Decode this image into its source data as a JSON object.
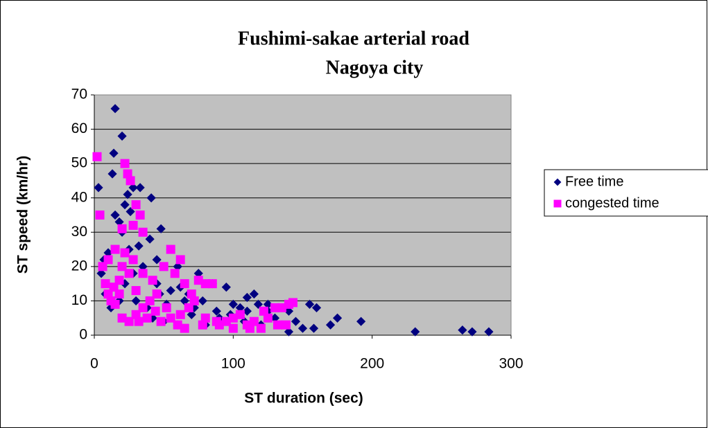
{
  "chart_data": {
    "type": "scatter",
    "title": "Fushimi-sakae arterial road",
    "subtitle": "Nagoya city",
    "x_label": "ST duration (sec)",
    "y_label": "ST speed (km/hr)",
    "xlim": [
      0,
      300
    ],
    "xticks": [
      0,
      100,
      200,
      300
    ],
    "ylim": [
      0,
      70
    ],
    "yticks": [
      0,
      10,
      20,
      30,
      40,
      50,
      60,
      70
    ],
    "grid": true,
    "legend": "right",
    "series": [
      {
        "name": "Free time",
        "color": "#000080",
        "marker": "diamond",
        "x": [
          15,
          20,
          14,
          3,
          13,
          28,
          33,
          41,
          48,
          55,
          60,
          75,
          85,
          95,
          115,
          125,
          140,
          155,
          160,
          175,
          170,
          192,
          231,
          265,
          272,
          284,
          158,
          145,
          140,
          100,
          105,
          110,
          90,
          80,
          70,
          65,
          55,
          45,
          35,
          25,
          20,
          15,
          10,
          5,
          8,
          12,
          18,
          22,
          28,
          30,
          38,
          42,
          50,
          60,
          52,
          47,
          32,
          26,
          22,
          24,
          18,
          7,
          40,
          45,
          62,
          68,
          72,
          78,
          88,
          98,
          108,
          120,
          130,
          135,
          150,
          118,
          110,
          125
        ],
        "values": [
          66,
          58,
          53,
          43,
          47,
          43,
          43,
          40,
          31,
          25,
          20,
          18,
          15,
          14,
          12,
          9,
          7,
          9,
          8,
          5,
          3,
          4,
          1,
          1.5,
          1,
          1,
          2,
          4,
          1,
          9,
          8,
          7,
          5,
          3,
          6,
          10,
          13,
          15,
          20,
          25,
          30,
          35,
          24,
          18,
          12,
          8,
          10,
          15,
          18,
          10,
          8,
          5,
          4,
          3,
          9,
          12,
          26,
          36,
          38,
          41,
          33,
          22,
          28,
          22,
          14,
          12,
          8,
          10,
          7,
          6,
          4,
          3,
          5,
          3,
          2,
          9,
          11,
          7
        ]
      },
      {
        "name": "congested time",
        "color": "#ff00ff",
        "marker": "square",
        "x": [
          2,
          4,
          22,
          24,
          26,
          30,
          33,
          35,
          28,
          20,
          15,
          10,
          6,
          8,
          10,
          12,
          15,
          20,
          25,
          30,
          35,
          40,
          45,
          50,
          55,
          62,
          58,
          65,
          70,
          75,
          80,
          85,
          72,
          68,
          62,
          55,
          48,
          38,
          30,
          25,
          20,
          18,
          22,
          28,
          35,
          42,
          60,
          65,
          80,
          90,
          95,
          100,
          105,
          110,
          115,
          120,
          125,
          130,
          135,
          140,
          143,
          138,
          132,
          122,
          112,
          100,
          88,
          78,
          52,
          44,
          32,
          14,
          18
        ],
        "values": [
          52,
          35,
          50,
          47,
          45,
          38,
          35,
          30,
          32,
          31,
          25,
          22,
          20,
          15,
          12,
          10,
          9,
          5,
          4,
          6,
          8,
          10,
          12,
          20,
          25,
          22,
          18,
          15,
          12,
          16,
          15,
          15,
          10,
          8,
          6,
          5,
          4,
          5,
          13,
          18,
          20,
          16,
          24,
          22,
          18,
          16,
          3,
          2,
          5,
          3,
          4,
          5,
          6,
          3,
          4,
          2,
          5,
          8,
          8,
          9,
          9.5,
          3,
          3,
          7,
          2,
          2,
          4,
          3,
          8,
          7,
          4,
          14,
          12
        ]
      }
    ]
  }
}
